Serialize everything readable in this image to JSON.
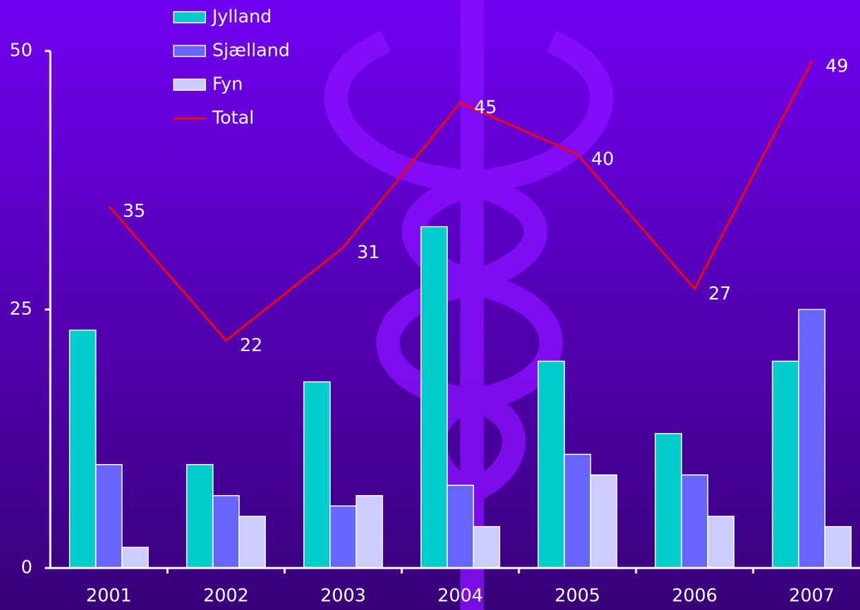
{
  "chart_data": {
    "type": "bar",
    "categories": [
      "2001",
      "2002",
      "2003",
      "2004",
      "2005",
      "2006",
      "2007"
    ],
    "series": [
      {
        "name": "Jylland",
        "color": "#00cccc",
        "values": [
          23,
          10,
          18,
          33,
          20,
          13,
          20
        ]
      },
      {
        "name": "Sjælland",
        "color": "#6666ff",
        "values": [
          10,
          7,
          6,
          8,
          11,
          9,
          25
        ]
      },
      {
        "name": "Fyn",
        "color": "#ccccff",
        "values": [
          2,
          5,
          7,
          4,
          9,
          5,
          4
        ]
      },
      {
        "name": "Total",
        "color": "#ff0000",
        "type": "line",
        "values": [
          35,
          22,
          31,
          45,
          40,
          27,
          49
        ]
      }
    ],
    "ylim": [
      0,
      50
    ],
    "yticks": [
      0,
      25,
      50
    ]
  }
}
